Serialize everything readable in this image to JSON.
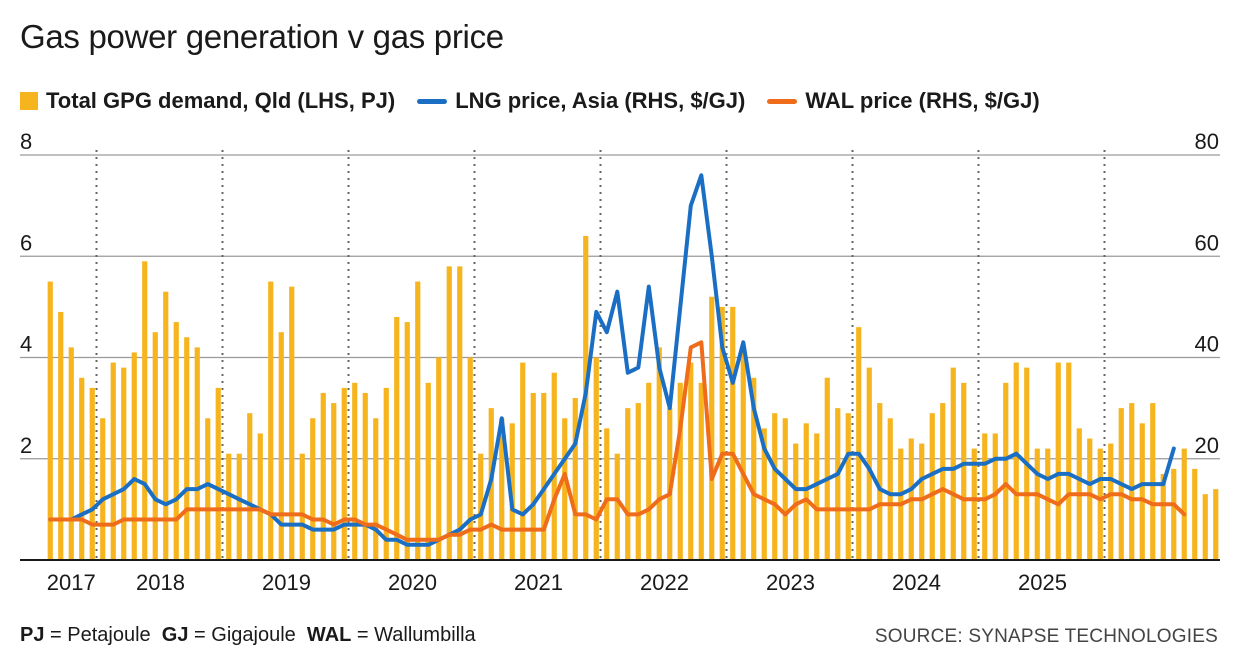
{
  "title": "Gas power generation v gas price",
  "legend": [
    {
      "label": "Total GPG demand, Qld (LHS, PJ)",
      "kind": "bar",
      "color": "#f6b51e"
    },
    {
      "label": "LNG price, Asia (RHS, $/GJ)",
      "kind": "line",
      "color": "#1a6fc4"
    },
    {
      "label": "WAL price (RHS, $/GJ)",
      "kind": "line",
      "color": "#ee6c1a"
    }
  ],
  "footnote": [
    {
      "abbr": "PJ",
      "text": "= Petajoule"
    },
    {
      "abbr": "GJ",
      "text": "= Gigajoule"
    },
    {
      "abbr": "WAL",
      "text": "= Wallumbilla"
    }
  ],
  "source": "SOURCE: SYNAPSE TECHNOLOGIES",
  "chart_data": {
    "type": "bar+line",
    "title": "Gas power generation v gas price",
    "x_start": "2016-08",
    "x_interval": "monthly",
    "year_labels": [
      "2017",
      "2018",
      "2019",
      "2020",
      "2021",
      "2022",
      "2023",
      "2024",
      "2025"
    ],
    "y_left": {
      "label": "PJ",
      "range": [
        0,
        8
      ],
      "ticks": [
        "2",
        "4",
        "6",
        "8"
      ]
    },
    "y_right": {
      "label": "$/GJ",
      "range": [
        0,
        80
      ],
      "ticks": [
        "20",
        "40",
        "60",
        "80"
      ]
    },
    "grid": true,
    "series": [
      {
        "name": "Total GPG demand, Qld (LHS, PJ)",
        "axis": "left",
        "type": "bar",
        "color": "#f6b51e",
        "values": [
          5.5,
          4.9,
          4.2,
          3.6,
          3.4,
          2.8,
          3.9,
          3.8,
          4.1,
          5.9,
          4.5,
          5.3,
          4.7,
          4.4,
          4.2,
          2.8,
          3.4,
          2.1,
          2.1,
          2.9,
          2.5,
          5.5,
          4.5,
          5.4,
          2.1,
          2.8,
          3.3,
          3.1,
          3.4,
          3.5,
          3.3,
          2.8,
          3.4,
          4.8,
          4.7,
          5.5,
          3.5,
          4.0,
          5.8,
          5.8,
          4.0,
          2.1,
          3.0,
          2.8,
          2.7,
          3.9,
          3.3,
          3.3,
          3.7,
          2.8,
          3.2,
          6.4,
          4.0,
          2.6,
          2.1,
          3.0,
          3.1,
          3.5,
          4.2,
          3.0,
          3.5,
          3.9,
          3.5,
          5.2,
          5.0,
          5.0,
          4.1,
          3.6,
          2.6,
          2.9,
          2.8,
          2.3,
          2.7,
          2.5,
          3.6,
          3.0,
          2.9,
          4.6,
          3.8,
          3.1,
          2.8,
          2.2,
          2.4,
          2.3,
          2.9,
          3.1,
          3.8,
          3.5,
          2.2,
          2.5,
          2.5,
          3.5,
          3.9,
          3.8,
          2.2,
          2.2,
          3.9,
          3.9,
          2.6,
          2.4,
          2.2,
          2.3,
          3.0,
          3.1,
          2.7,
          3.1,
          1.7,
          1.8,
          2.2,
          1.8,
          1.3,
          1.4
        ]
      },
      {
        "name": "LNG price, Asia (RHS, $/GJ)",
        "axis": "right",
        "type": "line",
        "color": "#1a6fc4",
        "values": [
          8,
          8,
          8,
          9,
          10,
          12,
          13,
          14,
          16,
          15,
          12,
          11,
          12,
          14,
          14,
          15,
          14,
          13,
          12,
          11,
          10,
          9,
          7,
          7,
          7,
          6,
          6,
          6,
          7,
          7,
          7,
          6,
          4,
          4,
          3,
          3,
          3,
          4,
          5,
          6,
          8,
          9,
          16,
          28,
          10,
          9,
          11,
          14,
          17,
          20,
          23,
          33,
          49,
          45,
          53,
          37,
          38,
          54,
          38,
          30,
          50,
          70,
          76,
          60,
          42,
          35,
          43,
          30,
          22,
          18,
          16,
          14,
          14,
          15,
          16,
          17,
          21,
          21,
          18,
          14,
          13,
          13,
          14,
          16,
          17,
          18,
          18,
          19,
          19,
          19,
          20,
          20,
          21,
          19,
          17,
          16,
          17,
          17,
          16,
          15,
          16,
          16,
          15,
          14,
          15,
          15,
          15,
          22
        ]
      },
      {
        "name": "WAL price (RHS, $/GJ)",
        "axis": "right",
        "type": "line",
        "color": "#ee6c1a",
        "values": [
          8,
          8,
          8,
          8,
          7,
          7,
          7,
          8,
          8,
          8,
          8,
          8,
          8,
          10,
          10,
          10,
          10,
          10,
          10,
          10,
          10,
          9,
          9,
          9,
          9,
          8,
          8,
          7,
          8,
          8,
          7,
          7,
          6,
          5,
          4,
          4,
          4,
          4,
          5,
          5,
          6,
          6,
          7,
          6,
          6,
          6,
          6,
          6,
          12,
          17,
          9,
          9,
          8,
          12,
          12,
          9,
          9,
          10,
          12,
          13,
          26,
          42,
          43,
          16,
          21,
          21,
          17,
          13,
          12,
          11,
          9,
          11,
          12,
          10,
          10,
          10,
          10,
          10,
          10,
          11,
          11,
          11,
          12,
          12,
          13,
          14,
          13,
          12,
          12,
          12,
          13,
          15,
          13,
          13,
          13,
          12,
          11,
          13,
          13,
          13,
          12,
          13,
          13,
          12,
          12,
          11,
          11,
          11,
          9
        ]
      }
    ]
  }
}
